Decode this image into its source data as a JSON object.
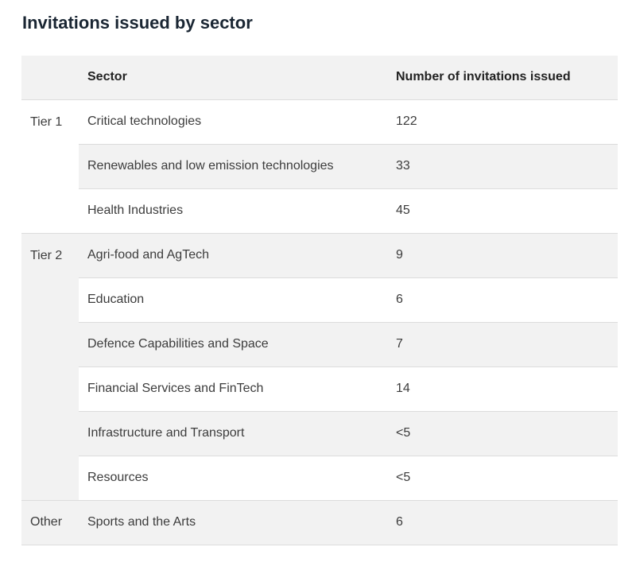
{
  "title": "Invitations issued by sector",
  "table": {
    "columns": [
      "",
      "Sector",
      "Number of invitations issued"
    ],
    "groups": [
      {
        "tier": "Tier 1",
        "rows": [
          {
            "sector": "Critical technologies",
            "count": "122"
          },
          {
            "sector": "Renewables and low emission technologies",
            "count": "33"
          },
          {
            "sector": "Health Industries",
            "count": "45"
          }
        ]
      },
      {
        "tier": "Tier 2",
        "rows": [
          {
            "sector": "Agri-food and AgTech",
            "count": "9"
          },
          {
            "sector": "Education",
            "count": "6"
          },
          {
            "sector": "Defence Capabilities and Space",
            "count": "7"
          },
          {
            "sector": "Financial Services and FinTech",
            "count": "14"
          },
          {
            "sector": "Infrastructure and Transport",
            "count": "<5"
          },
          {
            "sector": "Resources",
            "count": "<5"
          }
        ]
      },
      {
        "tier": "Other",
        "rows": [
          {
            "sector": "Sports and the Arts",
            "count": "6"
          }
        ]
      }
    ]
  },
  "colors": {
    "shade": "#f2f2f2",
    "border": "#dcdcdc",
    "title": "#1a2633"
  }
}
